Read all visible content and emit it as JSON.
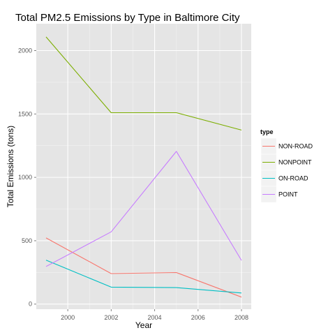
{
  "chart_data": {
    "type": "line",
    "title": "Total PM2.5 Emissions by Type in Baltimore City",
    "xlabel": "Year",
    "ylabel": "Total Emissions (tons)",
    "x": [
      1999,
      2002,
      2005,
      2008
    ],
    "xlim": [
      1998.55,
      2008.45
    ],
    "ylim": [
      -40,
      2212
    ],
    "x_ticks": [
      2000,
      2002,
      2004,
      2006,
      2008
    ],
    "y_ticks": [
      0,
      500,
      1000,
      1500,
      2000
    ],
    "grid": true,
    "legend": {
      "title": "type",
      "placement": "right"
    },
    "series": [
      {
        "name": "NON-ROAD",
        "color": "#F8766D",
        "values": [
          522,
          241,
          249,
          55
        ]
      },
      {
        "name": "NONPOINT",
        "color": "#7CAE00",
        "values": [
          2108,
          1510,
          1510,
          1373
        ]
      },
      {
        "name": "ON-ROAD",
        "color": "#00BFC4",
        "values": [
          347,
          134,
          130,
          88
        ]
      },
      {
        "name": "POINT",
        "color": "#C77CFF",
        "values": [
          297,
          570,
          1205,
          345
        ]
      }
    ]
  }
}
